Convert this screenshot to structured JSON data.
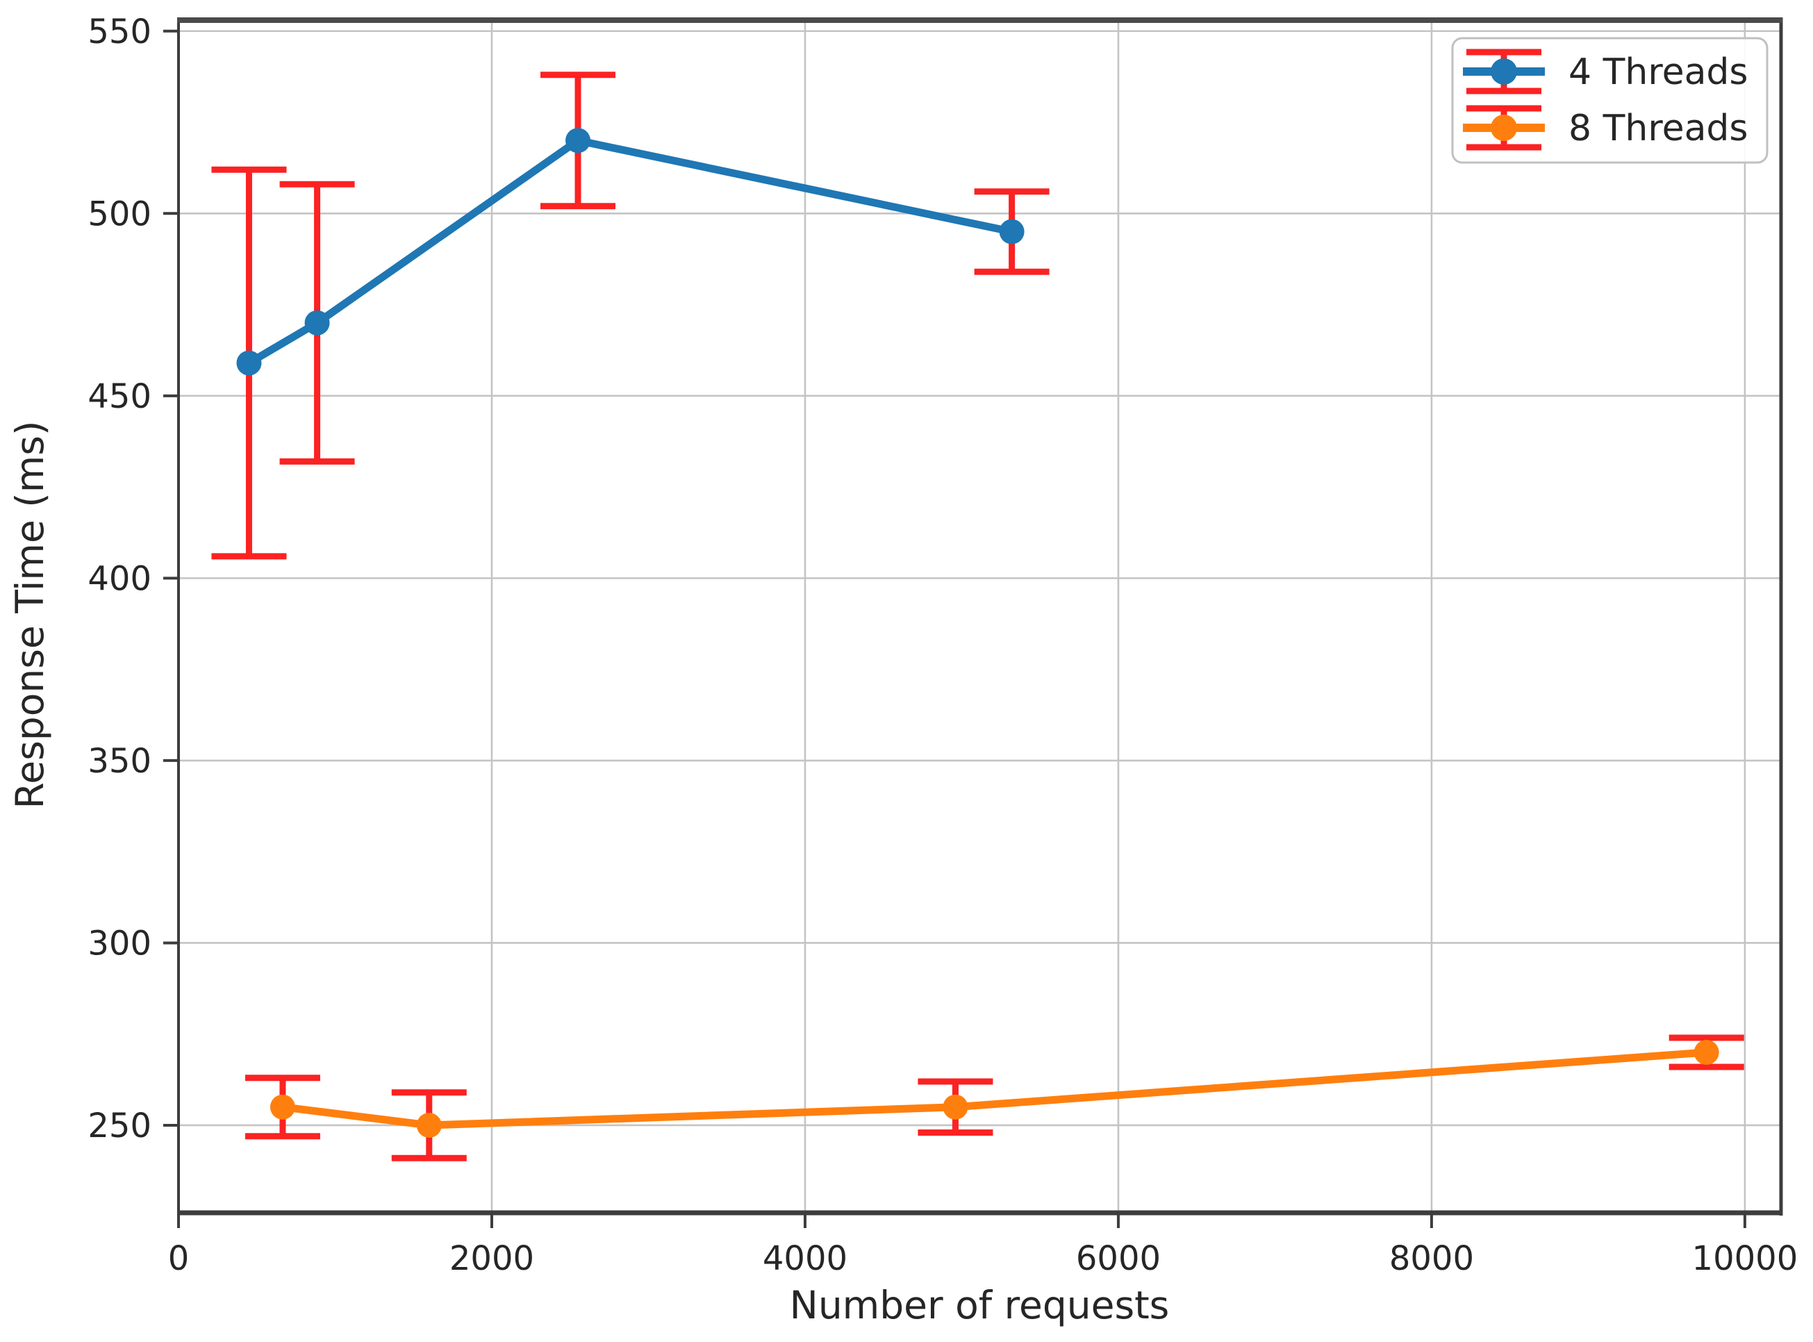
{
  "chart_data": {
    "type": "line",
    "title": "",
    "xlabel": "Number of requests",
    "ylabel": "Response Time (ms)",
    "xlim": [
      0,
      10231
    ],
    "ylim": [
      226,
      553
    ],
    "x_ticks": [
      0,
      2000,
      4000,
      6000,
      8000,
      10000
    ],
    "y_ticks": [
      250,
      300,
      350,
      400,
      450,
      500,
      550
    ],
    "grid": true,
    "legend_position": "upper right",
    "colors": {
      "error_bar": "#fb2222",
      "grid": "#c4c4c4",
      "spine": "#3d3d3d",
      "text": "#262626",
      "legend_border": "#c0c0c0"
    },
    "series": [
      {
        "name": "4 Threads",
        "color": "#1f77b4",
        "marker": "circle",
        "x": [
          450,
          885,
          2550,
          5320
        ],
        "y": [
          459,
          470,
          520,
          495
        ],
        "y_err": [
          53,
          38,
          18,
          11
        ]
      },
      {
        "name": "8 Threads",
        "color": "#ff7f0e",
        "marker": "circle",
        "x": [
          665,
          1600,
          4960,
          9755
        ],
        "y": [
          255,
          250,
          255,
          270
        ],
        "y_err": [
          8,
          9,
          7,
          4
        ]
      }
    ]
  }
}
